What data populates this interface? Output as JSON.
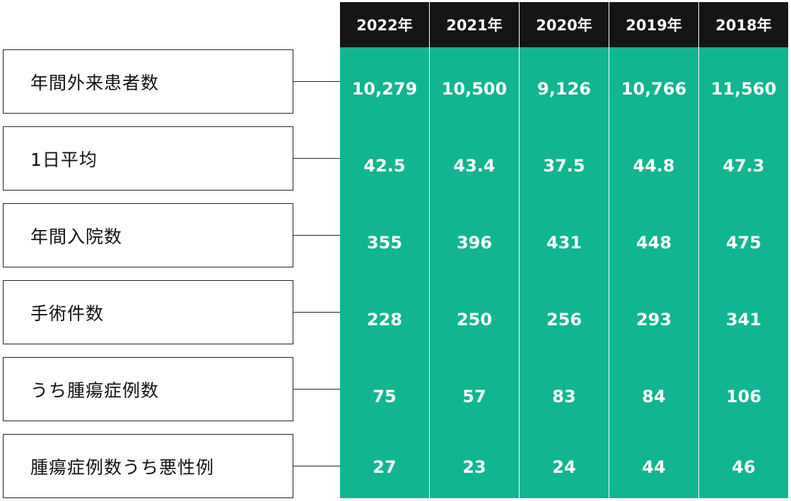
{
  "colors": {
    "header_bg": "#151515",
    "body_bg": "#12b591",
    "value_text": "#ffffff",
    "label_border": "#222222"
  },
  "chart_data": {
    "type": "table",
    "columns": [
      "2022年",
      "2021年",
      "2020年",
      "2019年",
      "2018年"
    ],
    "rows": [
      {
        "label": "年間外来患者数",
        "values": [
          "10,279",
          "10,500",
          "9,126",
          "10,766",
          "11,560"
        ]
      },
      {
        "label": "1日平均",
        "values": [
          "42.5",
          "43.4",
          "37.5",
          "44.8",
          "47.3"
        ]
      },
      {
        "label": "年間入院数",
        "values": [
          "355",
          "396",
          "431",
          "448",
          "475"
        ]
      },
      {
        "label": "手術件数",
        "values": [
          "228",
          "250",
          "256",
          "293",
          "341"
        ]
      },
      {
        "label": "うち腫瘍症例数",
        "values": [
          "75",
          "57",
          "83",
          "84",
          "106"
        ]
      },
      {
        "label": "腫瘍症例数うち悪性例",
        "values": [
          "27",
          "23",
          "24",
          "44",
          "46"
        ]
      }
    ]
  }
}
